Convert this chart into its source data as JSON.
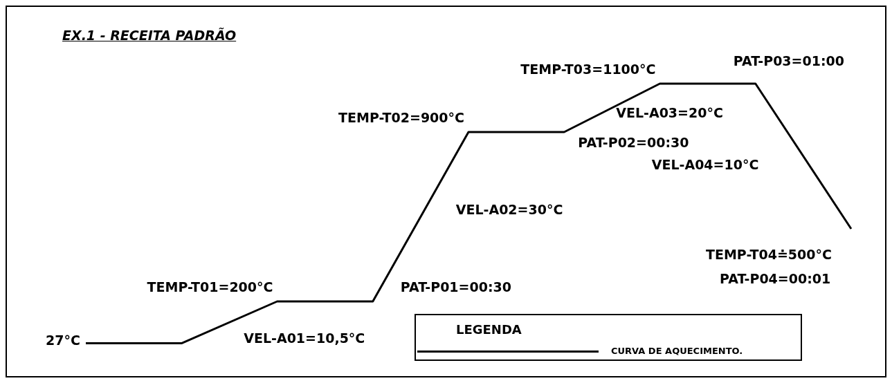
{
  "chart_data": {
    "type": "line",
    "title": "EX.1 - RECEITA PADRÃO",
    "categories": [
      null,
      null,
      null,
      null,
      null,
      null,
      null,
      null,
      null
    ],
    "series": [
      {
        "name": "CURVA DE AQUECIMENTO.",
        "color": "#000000",
        "values": [
          27,
          27,
          200,
          200,
          900,
          900,
          1100,
          1100,
          500
        ],
        "value_labels": [
          "27°C",
          null,
          "TEMP-T01=200°C",
          null,
          "TEMP-T02=900°C",
          null,
          "TEMP-T03=1100°C",
          null,
          "TEMP-T04≐500°C"
        ]
      }
    ],
    "legend": "bottom right",
    "legend_title": "LEGENDA",
    "annotations": [
      "VEL-A01=10,5°C",
      "PAT-P01=00:30",
      "VEL-A02=30°C",
      "PAT-P02=00:30",
      "VEL-A03=20°C",
      "PAT-P03=01:00",
      "VEL-A04=10°C",
      "PAT-P04=00:01"
    ]
  }
}
